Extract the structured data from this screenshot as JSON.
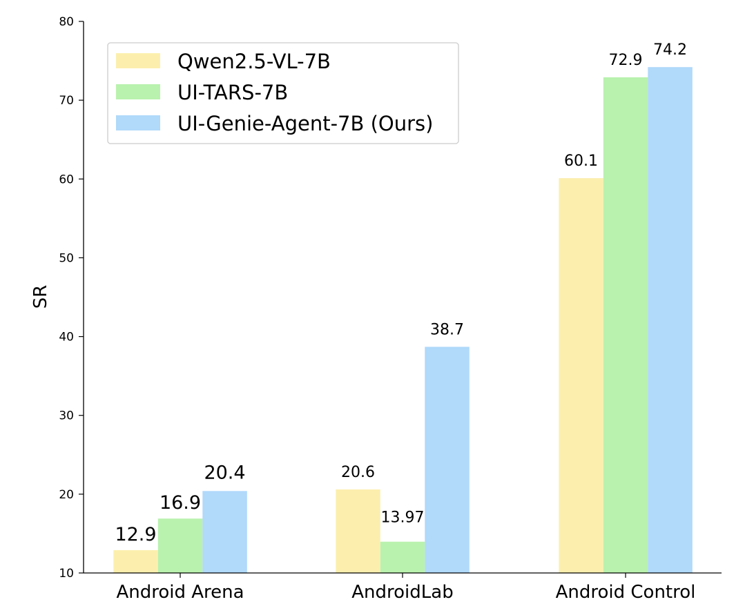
{
  "chart_data": {
    "type": "bar",
    "ylabel": "SR",
    "xlabel": "",
    "ylim": [
      10,
      80
    ],
    "yticks": [
      10,
      20,
      30,
      40,
      50,
      60,
      70,
      80
    ],
    "categories": [
      "Android Arena",
      "AndroidLab",
      "Android Control"
    ],
    "series": [
      {
        "name": "Qwen2.5-VL-7B",
        "color": "#fcefae",
        "values": [
          12.9,
          20.6,
          60.1
        ],
        "labels": [
          "12.9",
          "20.6",
          "60.1"
        ]
      },
      {
        "name": "UI-TARS-7B",
        "color": "#b9f2ae",
        "values": [
          16.9,
          13.97,
          72.9
        ],
        "labels": [
          "16.9",
          "13.97",
          "72.9"
        ]
      },
      {
        "name": "UI-Genie-Agent-7B (Ours)",
        "color": "#b0d9fa",
        "values": [
          20.4,
          38.7,
          74.2
        ],
        "labels": [
          "20.4",
          "38.7",
          "74.2"
        ]
      }
    ],
    "legend_position": "top-left",
    "grid": false
  }
}
